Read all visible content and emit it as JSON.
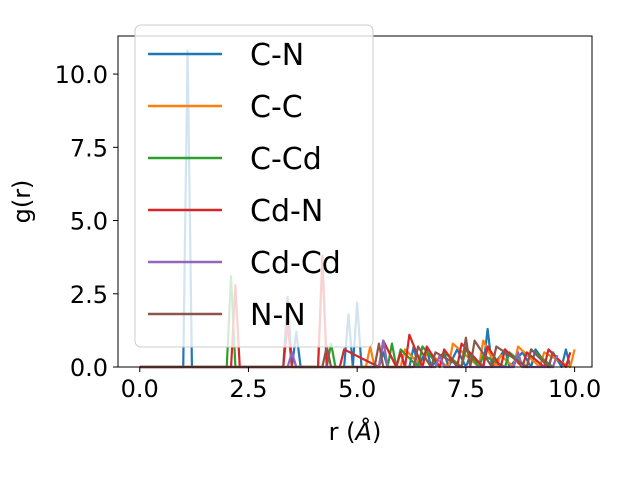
{
  "chart_data": {
    "type": "line",
    "xlabel": "r (Å)",
    "ylabel": "g(r)",
    "xlim": [
      -0.5,
      10.4
    ],
    "ylim": [
      0,
      11.3
    ],
    "xticks": [
      0.0,
      2.5,
      5.0,
      7.5,
      10.0
    ],
    "xtick_labels": [
      "0.0",
      "2.5",
      "5.0",
      "7.5",
      "10.0"
    ],
    "yticks": [
      0.0,
      2.5,
      5.0,
      7.5,
      10.0
    ],
    "ytick_labels": [
      "0.0",
      "2.5",
      "5.0",
      "7.5",
      "10.0"
    ],
    "grid": false,
    "legend_position": "upper-left",
    "series": [
      {
        "name": "C-N",
        "color": "#1f77b4",
        "x": [
          0.0,
          0.9,
          1.0,
          1.1,
          1.2,
          1.3,
          3.3,
          3.4,
          3.5,
          3.6,
          3.7,
          4.7,
          4.8,
          4.9,
          5.0,
          5.1,
          5.5,
          5.6,
          5.7,
          6.2,
          6.3,
          6.4,
          6.6,
          6.7,
          7.0,
          7.1,
          7.3,
          7.5,
          7.6,
          7.9,
          8.0,
          8.1,
          8.4,
          8.5,
          8.8,
          9.0,
          9.1,
          9.4,
          9.5,
          9.7,
          9.8,
          9.9
        ],
        "y": [
          0.0,
          0.0,
          0.0,
          10.8,
          0.0,
          0.0,
          0.0,
          2.4,
          0.0,
          1.2,
          0.0,
          0.0,
          1.8,
          0.0,
          2.2,
          0.0,
          0.0,
          0.5,
          0.0,
          0.0,
          0.7,
          0.0,
          0.6,
          0.0,
          0.5,
          0.0,
          0.6,
          0.0,
          0.4,
          0.0,
          1.3,
          0.0,
          0.6,
          0.0,
          0.5,
          0.0,
          0.6,
          0.0,
          0.5,
          0.0,
          0.6,
          0.0
        ]
      },
      {
        "name": "C-C",
        "color": "#ff7f0e",
        "x": [
          0.0,
          4.1,
          4.2,
          4.3,
          5.2,
          5.3,
          5.4,
          6.0,
          6.1,
          6.5,
          6.6,
          7.1,
          7.2,
          7.8,
          7.9,
          8.2,
          8.3,
          8.6,
          8.7,
          9.2,
          9.3,
          9.9,
          10.0
        ],
        "y": [
          0.0,
          0.0,
          3.5,
          0.0,
          0.0,
          0.7,
          0.0,
          0.0,
          0.6,
          0.0,
          0.5,
          0.0,
          0.8,
          0.0,
          0.9,
          0.0,
          0.4,
          0.0,
          0.7,
          0.0,
          0.5,
          0.0,
          0.6
        ]
      },
      {
        "name": "C-Cd",
        "color": "#2ca02c",
        "x": [
          0.0,
          2.0,
          2.1,
          2.2,
          4.3,
          4.4,
          4.5,
          5.5,
          5.6,
          5.7,
          5.8,
          5.9,
          6.0,
          6.4,
          6.5,
          6.9,
          7.0,
          7.4,
          7.5,
          7.8,
          7.9,
          8.4,
          8.5,
          8.9,
          9.0,
          9.5,
          9.6
        ],
        "y": [
          0.0,
          0.0,
          3.1,
          0.0,
          0.0,
          0.8,
          0.0,
          0.0,
          0.9,
          0.0,
          0.8,
          0.0,
          0.6,
          0.0,
          0.7,
          0.0,
          0.5,
          0.0,
          0.6,
          0.0,
          0.4,
          0.0,
          0.5,
          0.0,
          0.6,
          0.0,
          0.4
        ]
      },
      {
        "name": "Cd-N",
        "color": "#d62728",
        "x": [
          0.0,
          2.1,
          2.2,
          2.3,
          3.3,
          3.4,
          3.5,
          4.1,
          4.2,
          4.3,
          4.6,
          4.7,
          5.5,
          5.6,
          5.9,
          6.0,
          6.1,
          6.2,
          6.5,
          6.6,
          6.9,
          7.0,
          7.3,
          7.4,
          7.9,
          8.0,
          8.3,
          8.4,
          8.8,
          8.9,
          9.3,
          9.4,
          9.8,
          9.9
        ],
        "y": [
          0.0,
          0.0,
          2.8,
          0.0,
          0.0,
          1.5,
          0.0,
          0.0,
          3.8,
          0.0,
          0.0,
          0.6,
          0.0,
          0.9,
          0.0,
          0.5,
          0.0,
          1.1,
          0.0,
          0.7,
          0.0,
          0.6,
          0.0,
          0.8,
          0.0,
          0.7,
          0.0,
          0.6,
          0.0,
          0.5,
          0.0,
          0.6,
          0.0,
          0.5
        ]
      },
      {
        "name": "Cd-Cd",
        "color": "#9467bd",
        "x": [
          0.0,
          3.4,
          3.5,
          3.6,
          5.5,
          5.6,
          5.7,
          6.8,
          6.9,
          7.0,
          8.6,
          8.7,
          8.8,
          9.5,
          9.6
        ],
        "y": [
          0.0,
          0.0,
          0.5,
          0.0,
          0.0,
          0.9,
          0.0,
          0.0,
          0.4,
          0.0,
          0.0,
          0.5,
          0.0,
          0.0,
          0.4
        ]
      },
      {
        "name": "N-N",
        "color": "#8c564b",
        "x": [
          0.0,
          4.2,
          4.3,
          4.4,
          5.4,
          5.5,
          5.6,
          6.3,
          6.4,
          6.7,
          6.8,
          7.4,
          7.5,
          7.6,
          7.7,
          8.1,
          8.2,
          8.9,
          9.0,
          9.4,
          9.5
        ],
        "y": [
          0.0,
          0.0,
          0.7,
          0.0,
          0.0,
          0.8,
          0.0,
          0.0,
          0.7,
          0.0,
          0.5,
          0.0,
          1.0,
          0.0,
          0.9,
          0.0,
          0.7,
          0.0,
          0.6,
          0.0,
          0.5
        ]
      }
    ]
  }
}
